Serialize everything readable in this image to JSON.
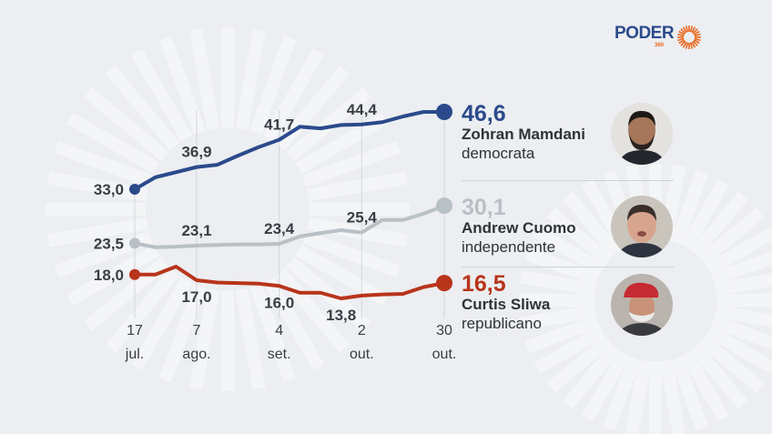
{
  "logo": {
    "text": "PODER",
    "sub": "360",
    "colors": {
      "primary": "#2b4a8b",
      "accent": "#e8661c"
    }
  },
  "chart_data": {
    "type": "line",
    "x": [
      "17 jul.",
      "24 jul.",
      "31 jul.",
      "7 ago.",
      "14 ago.",
      "21 ago.",
      "28 ago.",
      "4 set.",
      "11 set.",
      "18 set.",
      "25 set.",
      "2 out.",
      "9 out.",
      "16 out.",
      "23 out.",
      "30 out."
    ],
    "x_ticks": [
      {
        "day": "17",
        "month": "jul.",
        "index": 0
      },
      {
        "day": "7",
        "month": "ago.",
        "index": 3
      },
      {
        "day": "4",
        "month": "set.",
        "index": 7
      },
      {
        "day": "2",
        "month": "out.",
        "index": 11
      },
      {
        "day": "30",
        "month": "out.",
        "index": 15
      }
    ],
    "ylim": [
      12,
      48
    ],
    "grid": "vertical at tick dates",
    "series": [
      {
        "name": "Zohran Mamdani",
        "party": "democrata",
        "color": "#2b4a8b",
        "values": [
          33.0,
          35.1,
          36.0,
          36.9,
          37.3,
          38.9,
          40.4,
          41.7,
          44.0,
          43.7,
          44.3,
          44.4,
          44.8,
          45.8,
          46.6,
          46.6
        ],
        "labels": [
          {
            "index": 0,
            "text": "33,0",
            "pos": "left"
          },
          {
            "index": 3,
            "text": "36,9",
            "pos": "above"
          },
          {
            "index": 7,
            "text": "41,7",
            "pos": "above"
          },
          {
            "index": 11,
            "text": "44,4",
            "pos": "above"
          }
        ],
        "final": "46,6"
      },
      {
        "name": "Andrew Cuomo",
        "party": "independente",
        "color": "#b9c0c6",
        "values": [
          23.5,
          22.8,
          22.9,
          23.1,
          23.2,
          23.3,
          23.3,
          23.4,
          24.7,
          25.3,
          25.8,
          25.4,
          27.6,
          27.6,
          28.7,
          30.1
        ],
        "labels": [
          {
            "index": 0,
            "text": "23,5",
            "pos": "left"
          },
          {
            "index": 3,
            "text": "23,1",
            "pos": "above"
          },
          {
            "index": 7,
            "text": "23,4",
            "pos": "above"
          },
          {
            "index": 11,
            "text": "25,4",
            "pos": "above"
          }
        ],
        "final": "30,1"
      },
      {
        "name": "Curtis Sliwa",
        "party": "republicano",
        "color": "#b8341a",
        "values": [
          18.0,
          18.0,
          19.4,
          17.0,
          16.6,
          16.5,
          16.4,
          16.0,
          14.8,
          14.8,
          13.8,
          14.3,
          14.5,
          14.6,
          15.8,
          16.5
        ],
        "labels": [
          {
            "index": 0,
            "text": "18,0",
            "pos": "left"
          },
          {
            "index": 3,
            "text": "17,0",
            "pos": "below"
          },
          {
            "index": 7,
            "text": "16,0",
            "pos": "below"
          },
          {
            "index": 10,
            "text": "13,8",
            "pos": "below"
          }
        ],
        "final": "16,5"
      }
    ]
  }
}
